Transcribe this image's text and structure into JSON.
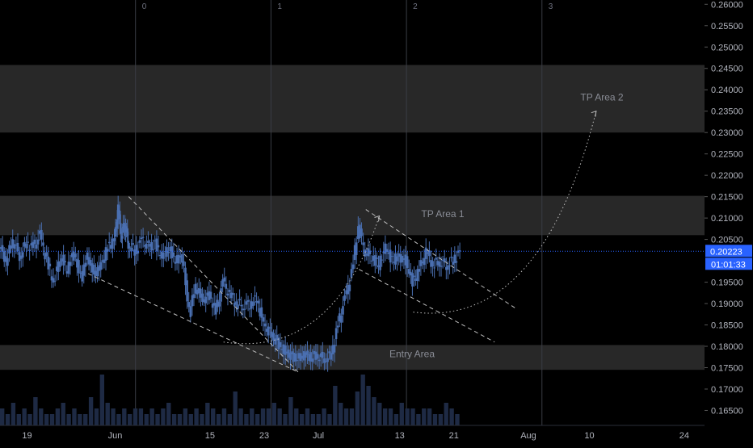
{
  "chart_data": {
    "type": "candlestick",
    "symbol_price_axis": {
      "ticks": [
        "0.26000",
        "0.25500",
        "0.25000",
        "0.24500",
        "0.24000",
        "0.23500",
        "0.23000",
        "0.22500",
        "0.22000",
        "0.21500",
        "0.21000",
        "0.20500",
        "0.19500",
        "0.19000",
        "0.18500",
        "0.18000",
        "0.17500",
        "0.17000",
        "0.16500"
      ],
      "tick_values": [
        0.26,
        0.255,
        0.25,
        0.245,
        0.24,
        0.235,
        0.23,
        0.225,
        0.22,
        0.215,
        0.21,
        0.205,
        0.195,
        0.19,
        0.185,
        0.18,
        0.175,
        0.17,
        0.165
      ],
      "ylim": [
        0.1615,
        0.261
      ]
    },
    "date_axis": {
      "labels": [
        "19",
        "Jun",
        "15",
        "23",
        "Jul",
        "13",
        "21",
        "Aug",
        "10",
        "24"
      ],
      "day_index": [
        -13,
        0,
        14,
        22,
        30,
        42,
        50,
        61,
        70,
        84
      ],
      "xlim_days": [
        -17,
        87
      ]
    },
    "current_price": {
      "value": 0.20223,
      "label": "0.20223",
      "countdown": "01:01:33",
      "color": "#2962ff"
    },
    "fib_time_lines": [
      {
        "label": "0",
        "day": 3
      },
      {
        "label": "1",
        "day": 23
      },
      {
        "label": "2",
        "day": 43
      },
      {
        "label": "3",
        "day": 63
      }
    ],
    "zones": [
      {
        "name": "TP Area 2",
        "from": 0.23,
        "to": 0.2458,
        "show_label": true
      },
      {
        "name": "TP Area 1",
        "from": 0.206,
        "to": 0.2152,
        "show_label": true
      },
      {
        "name": "Entry Area",
        "from": 0.1745,
        "to": 0.1803,
        "show_label": true
      }
    ],
    "price_series": [
      [
        -17,
        0.2035
      ],
      [
        -16,
        0.2
      ],
      [
        -15,
        0.205
      ],
      [
        -14,
        0.201
      ],
      [
        -13,
        0.204
      ],
      [
        -12,
        0.203
      ],
      [
        -11,
        0.206
      ],
      [
        -10,
        0.2
      ],
      [
        -9,
        0.195
      ],
      [
        -8,
        0.201
      ],
      [
        -7,
        0.198
      ],
      [
        -6,
        0.202
      ],
      [
        -5,
        0.196
      ],
      [
        -4,
        0.201
      ],
      [
        -3,
        0.197
      ],
      [
        -2,
        0.199
      ],
      [
        -1,
        0.203
      ],
      [
        0,
        0.205
      ],
      [
        0.5,
        0.212
      ],
      [
        1,
        0.206
      ],
      [
        1.5,
        0.209
      ],
      [
        2,
        0.204
      ],
      [
        3,
        0.202
      ],
      [
        4,
        0.205
      ],
      [
        5,
        0.203
      ],
      [
        6,
        0.204
      ],
      [
        7,
        0.201
      ],
      [
        8,
        0.203
      ],
      [
        9,
        0.2
      ],
      [
        10,
        0.201
      ],
      [
        11,
        0.188
      ],
      [
        12,
        0.194
      ],
      [
        13,
        0.191
      ],
      [
        14,
        0.192
      ],
      [
        15,
        0.188
      ],
      [
        16,
        0.195
      ],
      [
        17,
        0.192
      ],
      [
        18,
        0.19
      ],
      [
        19,
        0.1895
      ],
      [
        20,
        0.19
      ],
      [
        21,
        0.191
      ],
      [
        22,
        0.185
      ],
      [
        23,
        0.183
      ],
      [
        24,
        0.181
      ],
      [
        25,
        0.179
      ],
      [
        26,
        0.178
      ],
      [
        27,
        0.177
      ],
      [
        28,
        0.178
      ],
      [
        29,
        0.1775
      ],
      [
        30,
        0.178
      ],
      [
        31,
        0.177
      ],
      [
        32,
        0.178
      ],
      [
        33,
        0.185
      ],
      [
        34,
        0.191
      ],
      [
        35,
        0.197
      ],
      [
        36,
        0.208
      ],
      [
        37,
        0.202
      ],
      [
        38,
        0.201
      ],
      [
        39,
        0.199
      ],
      [
        40,
        0.203
      ],
      [
        41,
        0.2
      ],
      [
        42,
        0.201
      ],
      [
        43,
        0.2
      ],
      [
        44,
        0.195
      ],
      [
        45,
        0.198
      ],
      [
        46,
        0.202
      ],
      [
        47,
        0.199
      ],
      [
        48,
        0.2
      ],
      [
        49,
        0.199
      ],
      [
        50,
        0.2
      ],
      [
        51,
        0.2022
      ]
    ],
    "annotations": [
      {
        "type": "dashed-line",
        "from": [
          2,
          0.215
        ],
        "to": [
          27,
          0.174
        ]
      },
      {
        "type": "dashed-line",
        "from": [
          -4,
          0.197
        ],
        "to": [
          27,
          0.174
        ]
      },
      {
        "type": "dashed-line",
        "from": [
          37,
          0.212
        ],
        "to": [
          59,
          0.189
        ]
      },
      {
        "type": "dashed-line",
        "from": [
          36,
          0.198
        ],
        "to": [
          56,
          0.181
        ]
      },
      {
        "type": "dotted-curve",
        "from": [
          16,
          0.181
        ],
        "to": [
          39,
          0.2105
        ]
      },
      {
        "type": "dotted-curve",
        "from": [
          44,
          0.188
        ],
        "to": [
          71,
          0.235
        ]
      }
    ],
    "volume": {
      "note": "volume histogram along bottom",
      "values": [
        3,
        2,
        4,
        2,
        3,
        2,
        5,
        3,
        2,
        2,
        3,
        4,
        2,
        3,
        2,
        2,
        5,
        3,
        9,
        4,
        3,
        2,
        3,
        2,
        3,
        3,
        2,
        3,
        2,
        3,
        4,
        2,
        2,
        3,
        2,
        3,
        2,
        4,
        3,
        2,
        3,
        2,
        6,
        3,
        2,
        3,
        2,
        3,
        3,
        4,
        3,
        2,
        5,
        3,
        2,
        3,
        2,
        2,
        3,
        2,
        7,
        4,
        3,
        3,
        6,
        9,
        7,
        5,
        4,
        3,
        3,
        2,
        4,
        3,
        3,
        2,
        3,
        3,
        2,
        2,
        4,
        3,
        2
      ]
    },
    "colors": {
      "background": "#000000",
      "grid_line": "#2a2e39",
      "candle": "#4a6fb0",
      "zone_fill": "#2a2a2a",
      "annotation": "#bfbfbf",
      "price_line": "#2962ff"
    },
    "title": "",
    "xlabel": "",
    "ylabel": ""
  }
}
